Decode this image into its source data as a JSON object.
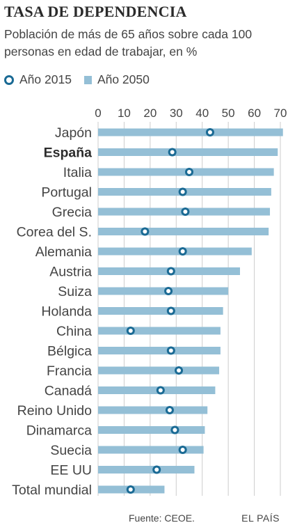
{
  "title": "TASA DE DEPENDENCIA",
  "subtitle": "Población de más de 65 años sobre cada 100 personas en edad de trabajar, en %",
  "legend": {
    "series_2015": "Año 2015",
    "series_2050": "Año 2050"
  },
  "source": "Fuente: CEOE.",
  "brand": "EL PAÍS",
  "colors": {
    "bar": "#94bfd6",
    "marker": "#1a6a94",
    "grid": "#cccccc"
  },
  "chart_data": {
    "type": "bar",
    "orientation": "horizontal",
    "title": "TASA DE DEPENDENCIA",
    "subtitle": "Población de más de 65 años sobre cada 100 personas en edad de trabajar, en %",
    "xlim": [
      0,
      70
    ],
    "xticks": [
      0,
      10,
      20,
      30,
      40,
      50,
      60,
      70
    ],
    "grid": true,
    "legend_position": "top-left",
    "highlight_category": "España",
    "categories": [
      "Japón",
      "España",
      "Italia",
      "Portugal",
      "Grecia",
      "Corea del S.",
      "Alemania",
      "Austria",
      "Suiza",
      "Holanda",
      "China",
      "Bélgica",
      "Francia",
      "Canadá",
      "Reino Unido",
      "Dinamarca",
      "Suecia",
      "EE UU",
      "Total mundial"
    ],
    "series": [
      {
        "name": "Año 2050",
        "mark": "bar",
        "values": [
          71,
          69,
          67.5,
          66.5,
          66,
          65.5,
          59,
          54.5,
          50,
          48,
          47,
          47,
          46.5,
          45,
          42,
          41,
          40.5,
          37,
          25.5
        ]
      },
      {
        "name": "Año 2015",
        "mark": "circle",
        "values": [
          43,
          28.5,
          35,
          32.5,
          33.5,
          18,
          32.5,
          28,
          27,
          28,
          12.5,
          28,
          31,
          24,
          27.5,
          29.5,
          32.5,
          22.5,
          12.5
        ]
      }
    ]
  }
}
